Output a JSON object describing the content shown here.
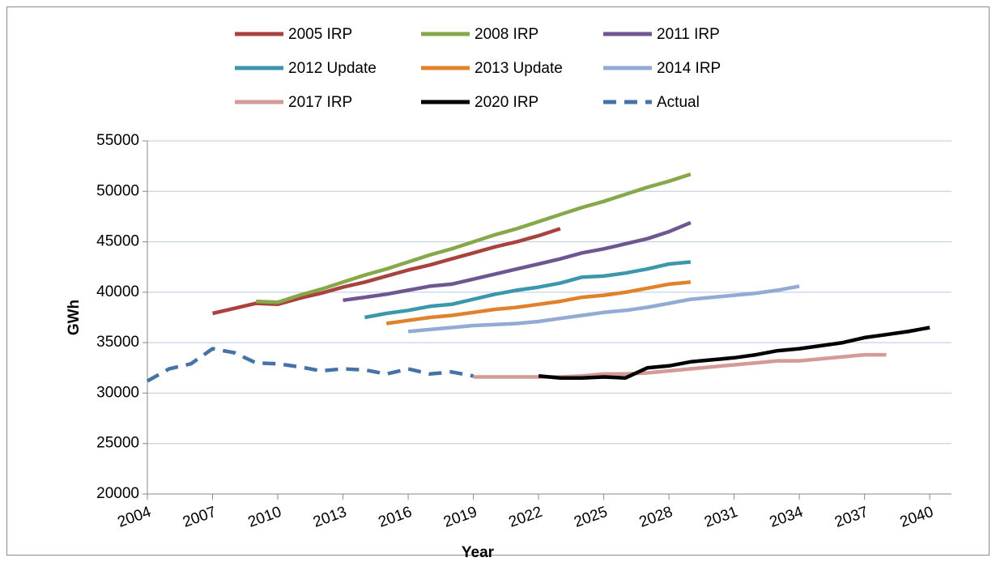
{
  "chart_data": {
    "type": "line",
    "x_label": "Year",
    "y_label": "GWh",
    "xlim": [
      2004,
      2041
    ],
    "xticks": [
      2004,
      2007,
      2010,
      2013,
      2016,
      2019,
      2022,
      2025,
      2028,
      2031,
      2034,
      2037,
      2040
    ],
    "ylim": [
      20000,
      55000
    ],
    "yticks": [
      20000,
      25000,
      30000,
      35000,
      40000,
      45000,
      50000,
      55000
    ],
    "grid": true,
    "legend": "top",
    "series": [
      {
        "name": "2005 IRP",
        "color": "#a8423f",
        "x": [
          2007,
          2008,
          2009,
          2010,
          2011,
          2012,
          2013,
          2014,
          2015,
          2016,
          2017,
          2018,
          2019,
          2020,
          2021,
          2022,
          2023
        ],
        "values": [
          37900,
          38400,
          38900,
          38800,
          39400,
          39900,
          40500,
          41000,
          41600,
          42200,
          42700,
          43300,
          43900,
          44500,
          45000,
          45600,
          46300
        ]
      },
      {
        "name": "2008 IRP",
        "color": "#86a84a",
        "x": [
          2009,
          2010,
          2011,
          2012,
          2013,
          2014,
          2015,
          2016,
          2017,
          2018,
          2019,
          2020,
          2021,
          2022,
          2023,
          2024,
          2025,
          2026,
          2027,
          2028,
          2029
        ],
        "values": [
          39100,
          39000,
          39700,
          40300,
          41000,
          41700,
          42300,
          43000,
          43700,
          44300,
          45000,
          45700,
          46300,
          47000,
          47700,
          48400,
          49000,
          49700,
          50400,
          51000,
          51700
        ]
      },
      {
        "name": "2011 IRP",
        "color": "#6f5690",
        "x": [
          2013,
          2014,
          2015,
          2016,
          2017,
          2018,
          2019,
          2020,
          2021,
          2022,
          2023,
          2024,
          2025,
          2026,
          2027,
          2028,
          2029
        ],
        "values": [
          39200,
          39500,
          39800,
          40200,
          40600,
          40800,
          41300,
          41800,
          42300,
          42800,
          43300,
          43900,
          44300,
          44800,
          45300,
          46000,
          46900
        ]
      },
      {
        "name": "2012 Update",
        "color": "#3c96ac",
        "x": [
          2014,
          2015,
          2016,
          2017,
          2018,
          2019,
          2020,
          2021,
          2022,
          2023,
          2024,
          2025,
          2026,
          2027,
          2028,
          2029
        ],
        "values": [
          37500,
          37900,
          38200,
          38600,
          38800,
          39300,
          39800,
          40200,
          40500,
          40900,
          41500,
          41600,
          41900,
          42300,
          42800,
          43000
        ]
      },
      {
        "name": "2013 Update",
        "color": "#e0812c",
        "x": [
          2015,
          2016,
          2017,
          2018,
          2019,
          2020,
          2021,
          2022,
          2023,
          2024,
          2025,
          2026,
          2027,
          2028,
          2029
        ],
        "values": [
          36900,
          37200,
          37500,
          37700,
          38000,
          38300,
          38500,
          38800,
          39100,
          39500,
          39700,
          40000,
          40400,
          40800,
          41000
        ]
      },
      {
        "name": "2014 IRP",
        "color": "#93aad4",
        "x": [
          2016,
          2017,
          2018,
          2019,
          2020,
          2021,
          2022,
          2023,
          2024,
          2025,
          2026,
          2027,
          2028,
          2029,
          2030,
          2031,
          2032,
          2033,
          2034
        ],
        "values": [
          36100,
          36300,
          36500,
          36700,
          36800,
          36900,
          37100,
          37400,
          37700,
          38000,
          38200,
          38500,
          38900,
          39300,
          39500,
          39700,
          39900,
          40200,
          40600
        ]
      },
      {
        "name": "2017 IRP",
        "color": "#d39a98",
        "x": [
          2019,
          2020,
          2021,
          2022,
          2023,
          2024,
          2025,
          2026,
          2027,
          2028,
          2029,
          2030,
          2031,
          2032,
          2033,
          2034,
          2035,
          2036,
          2037,
          2038
        ],
        "values": [
          31600,
          31600,
          31600,
          31600,
          31600,
          31700,
          31900,
          31900,
          32000,
          32200,
          32400,
          32600,
          32800,
          33000,
          33200,
          33200,
          33400,
          33600,
          33800,
          33800
        ]
      },
      {
        "name": "2020 IRP",
        "color": "#000000",
        "x": [
          2022,
          2023,
          2024,
          2025,
          2026,
          2027,
          2028,
          2029,
          2030,
          2031,
          2032,
          2033,
          2034,
          2035,
          2036,
          2037,
          2038,
          2039,
          2040
        ],
        "values": [
          31700,
          31500,
          31500,
          31600,
          31500,
          32500,
          32700,
          33100,
          33300,
          33500,
          33800,
          34200,
          34400,
          34700,
          35000,
          35500,
          35800,
          36100,
          36500
        ]
      },
      {
        "name": "Actual",
        "color": "#4573a8",
        "dashed": true,
        "x": [
          2004,
          2005,
          2006,
          2007,
          2008,
          2009,
          2010,
          2011,
          2012,
          2013,
          2014,
          2015,
          2016,
          2017,
          2018,
          2019
        ],
        "values": [
          31200,
          32400,
          32900,
          34400,
          34000,
          33000,
          32900,
          32600,
          32200,
          32400,
          32300,
          31900,
          32400,
          31900,
          32100,
          31700
        ]
      }
    ]
  }
}
